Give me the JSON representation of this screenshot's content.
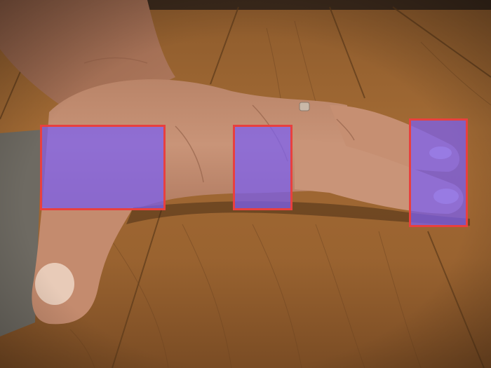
{
  "image": {
    "kind": "photograph",
    "subject": "hand-on-wooden-floor"
  },
  "overlay": {
    "highlight_fill": "#7a60f5",
    "highlight_border": "#e8403f",
    "highlight_count": 3
  }
}
